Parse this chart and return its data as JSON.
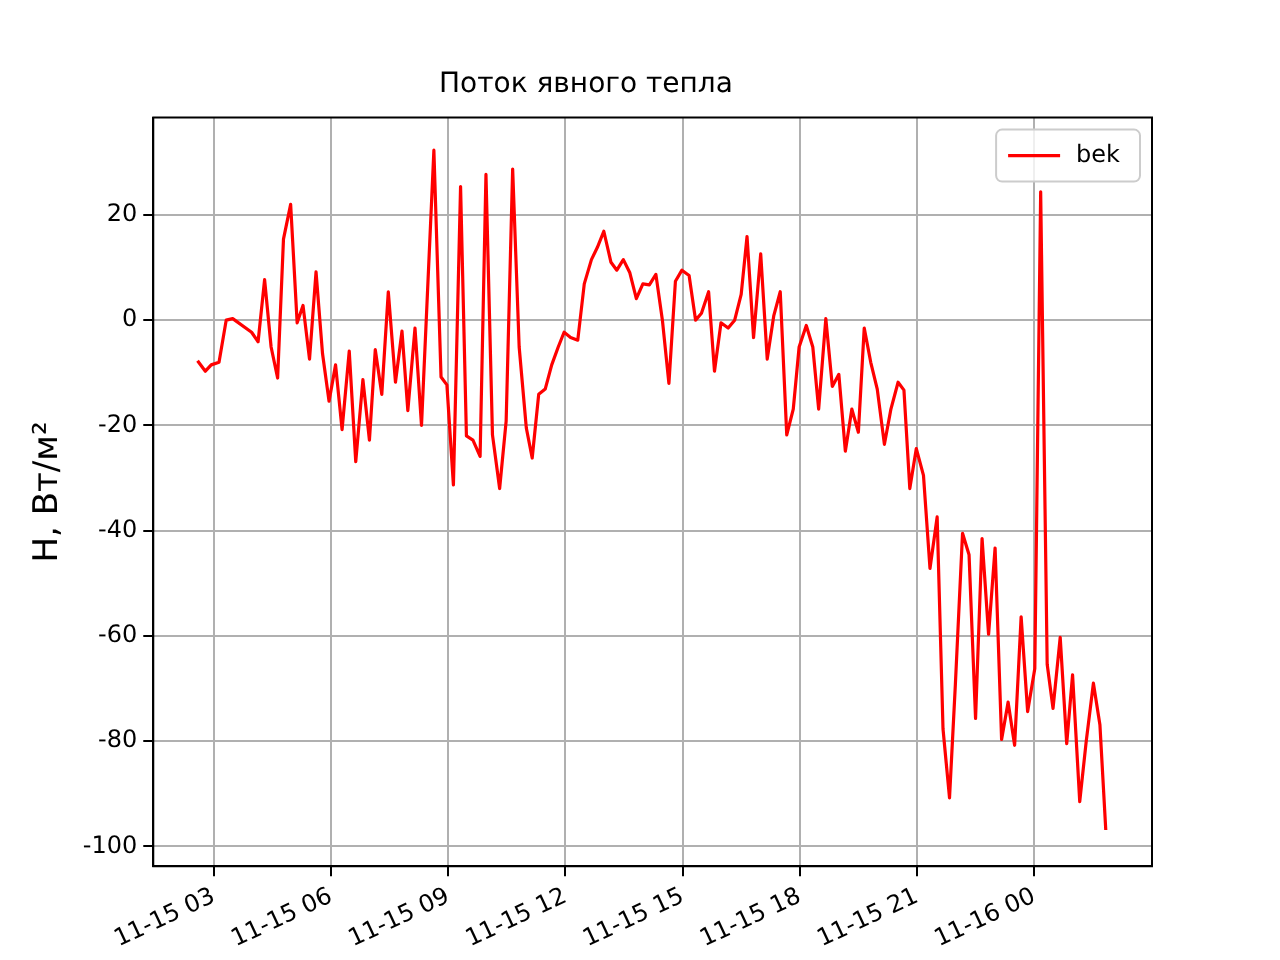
{
  "chart_data": {
    "type": "line",
    "title": "Поток явного тепла",
    "ylabel": "H, Вт/м²",
    "xlim": [
      "--11-15T01:27",
      "--11-16T03:01"
    ],
    "ylim": [
      -103.8,
      38.5
    ],
    "xticks": [
      {
        "value": "--11-15T03:00",
        "label": "11-15 03"
      },
      {
        "value": "--11-15T06:00",
        "label": "11-15 06"
      },
      {
        "value": "--11-15T09:00",
        "label": "11-15 09"
      },
      {
        "value": "--11-15T12:00",
        "label": "11-15 12"
      },
      {
        "value": "--11-15T15:00",
        "label": "11-15 15"
      },
      {
        "value": "--11-15T18:00",
        "label": "11-15 18"
      },
      {
        "value": "--11-15T21:00",
        "label": "11-15 21"
      },
      {
        "value": "--11-16T00:00",
        "label": "11-16 00"
      }
    ],
    "yticks": [
      -100,
      -80,
      -60,
      -40,
      -20,
      0,
      20
    ],
    "grid": true,
    "legend": "top right",
    "line_style": "solid",
    "marker": "none",
    "series": [
      {
        "name": "bek",
        "color": "#ff0000",
        "x": [
          "--11-15T02:35",
          "--11-15T02:47",
          "--11-15T02:56",
          "--11-15T03:08",
          "--11-15T03:19",
          "--11-15T03:29",
          "--11-15T03:58",
          "--11-15T04:08",
          "--11-15T04:18",
          "--11-15T04:28",
          "--11-15T04:38",
          "--11-15T04:47",
          "--11-15T04:58",
          "--11-15T05:08",
          "--11-15T05:17",
          "--11-15T05:27",
          "--11-15T05:37",
          "--11-15T05:47",
          "--11-15T05:57",
          "--11-15T06:07",
          "--11-15T06:17",
          "--11-15T06:28",
          "--11-15T06:38",
          "--11-15T06:49",
          "--11-15T06:59",
          "--11-15T07:08",
          "--11-15T07:18",
          "--11-15T07:28",
          "--11-15T07:39",
          "--11-15T07:49",
          "--11-15T07:58",
          "--11-15T08:09",
          "--11-15T08:19",
          "--11-15T08:38",
          "--11-15T08:49",
          "--11-15T08:58",
          "--11-15T09:08",
          "--11-15T09:19",
          "--11-15T09:28",
          "--11-15T09:38",
          "--11-15T09:49",
          "--11-15T09:58",
          "--11-15T10:08",
          "--11-15T10:19",
          "--11-15T10:29",
          "--11-15T10:39",
          "--11-15T10:49",
          "--11-15T11:00",
          "--11-15T11:09",
          "--11-15T11:19",
          "--11-15T11:29",
          "--11-15T11:39",
          "--11-15T11:49",
          "--11-15T11:58",
          "--11-15T12:08",
          "--11-15T12:19",
          "--11-15T12:29",
          "--11-15T12:40",
          "--11-15T12:49",
          "--11-15T12:59",
          "--11-15T13:10",
          "--11-15T13:19",
          "--11-15T13:29",
          "--11-15T13:39",
          "--11-15T13:49",
          "--11-15T13:59",
          "--11-15T14:09",
          "--11-15T14:19",
          "--11-15T14:29",
          "--11-15T14:39",
          "--11-15T14:49",
          "--11-15T14:59",
          "--11-15T15:10",
          "--11-15T15:20",
          "--11-15T15:29",
          "--11-15T15:40",
          "--11-15T15:49",
          "--11-15T15:59",
          "--11-15T16:10",
          "--11-15T16:20",
          "--11-15T16:30",
          "--11-15T16:39",
          "--11-15T16:49",
          "--11-15T17:00",
          "--11-15T17:10",
          "--11-15T17:20",
          "--11-15T17:30",
          "--11-15T17:40",
          "--11-15T17:50",
          "--11-15T17:59",
          "--11-15T18:10",
          "--11-15T18:20",
          "--11-15T18:29",
          "--11-15T18:40",
          "--11-15T18:50",
          "--11-15T19:00",
          "--11-15T19:10",
          "--11-15T19:20",
          "--11-15T19:30",
          "--11-15T19:39",
          "--11-15T19:49",
          "--11-15T19:59",
          "--11-15T20:10",
          "--11-15T20:20",
          "--11-15T20:31",
          "--11-15T20:40",
          "--11-15T20:49",
          "--11-15T20:59",
          "--11-15T21:10",
          "--11-15T21:20",
          "--11-15T21:31",
          "--11-15T21:40",
          "--11-15T21:50",
          "--11-15T21:59",
          "--11-15T22:10",
          "--11-15T22:20",
          "--11-15T22:30",
          "--11-15T22:40",
          "--11-15T22:50",
          "--11-15T23:00",
          "--11-15T23:10",
          "--11-15T23:20",
          "--11-15T23:30",
          "--11-15T23:40",
          "--11-15T23:50",
          "--11-16T00:01",
          "--11-16T00:10",
          "--11-16T00:20",
          "--11-16T00:29",
          "--11-16T00:40",
          "--11-16T00:50",
          "--11-16T00:59",
          "--11-16T01:10",
          "--11-16T01:20",
          "--11-16T01:31",
          "--11-16T01:41",
          "--11-16T01:50"
        ],
        "values": [
          -7.7,
          -9.7,
          -8.5,
          -8,
          0,
          0.3,
          -2.3,
          -4.1,
          7.7,
          -5.1,
          -11,
          15.4,
          22,
          -0.5,
          2.8,
          -7.4,
          9.2,
          -6.4,
          -15.4,
          -8.5,
          -20.8,
          -5.9,
          -26.9,
          -11.3,
          -22.8,
          -5.6,
          -14.1,
          5.4,
          -11.8,
          -2.1,
          -17.2,
          -1.5,
          -20,
          32.3,
          -10.8,
          -12.3,
          -31.3,
          25.4,
          -22,
          -22.8,
          -25.9,
          27.7,
          -21.8,
          -32,
          -19.2,
          28.7,
          -5.1,
          -20.5,
          -26.2,
          -14.1,
          -13.1,
          -8.5,
          -5.1,
          -2.3,
          -3.3,
          -3.8,
          6.9,
          11.5,
          13.8,
          16.9,
          11,
          9.5,
          11.5,
          9,
          4.1,
          6.9,
          6.7,
          8.7,
          0,
          -12,
          7.4,
          9.5,
          8.5,
          0,
          1.3,
          5.4,
          -9.7,
          -0.5,
          -1.5,
          0,
          4.9,
          15.9,
          -3.3,
          12.6,
          -7.4,
          0.8,
          5.4,
          -21.8,
          -16.9,
          -5.1,
          -1,
          -5.1,
          -16.9,
          0.3,
          -12.6,
          -10.3,
          -24.9,
          -16.9,
          -21.3,
          -1.5,
          -8,
          -13.1,
          -23.6,
          -16.9,
          -11.8,
          -13.3,
          -32,
          -24.4,
          -29.5,
          -47.2,
          -37.4,
          -77.7,
          -90.8,
          -69.2,
          -40.5,
          -44.6,
          -75.7,
          -41.5,
          -59.7,
          -43.3,
          -79.7,
          -72.6,
          -80.8,
          -56.4,
          -74.4,
          -66.2,
          24.4,
          -65.4,
          -73.8,
          -60.3,
          -80.5,
          -67.4,
          -91.5,
          -80,
          -69,
          -76.9,
          -96.9
        ]
      }
    ]
  }
}
